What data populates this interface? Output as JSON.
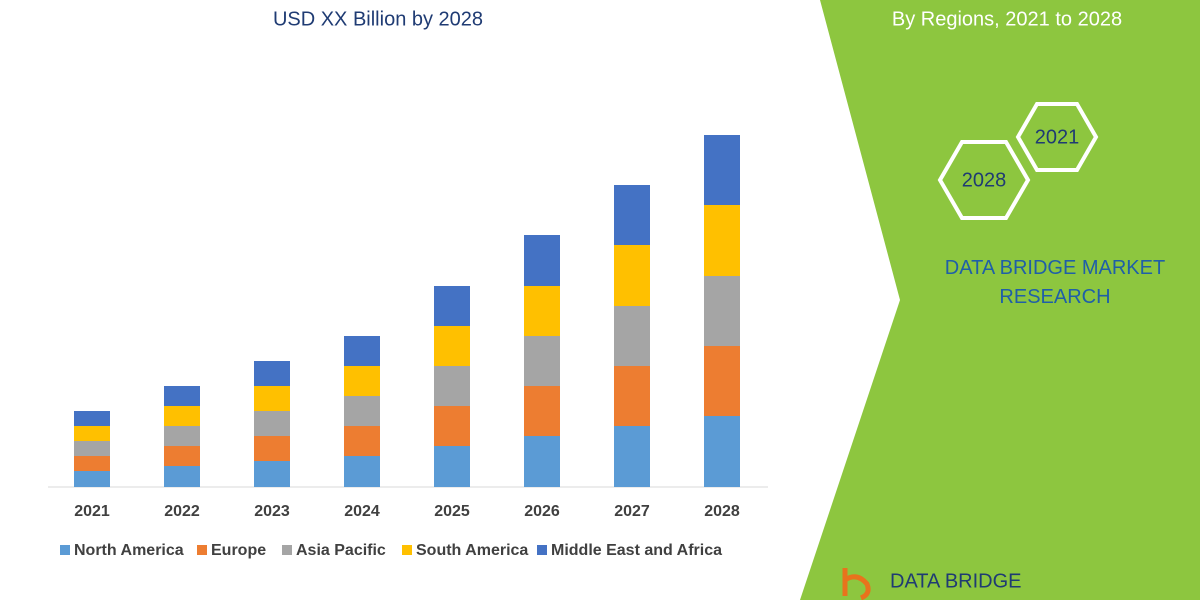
{
  "chart_data": {
    "type": "stacked-bar",
    "title": "USD XX Billion by 2028",
    "categories": [
      "2021",
      "2022",
      "2023",
      "2024",
      "2025",
      "2026",
      "2027",
      "2028"
    ],
    "series": [
      {
        "name": "North America",
        "color": "#5b9bd5",
        "values": [
          16,
          21,
          26,
          31,
          41,
          51,
          61,
          71
        ]
      },
      {
        "name": "Europe",
        "color": "#ed7d31",
        "values": [
          15,
          20,
          25,
          30,
          40,
          50,
          60,
          70
        ]
      },
      {
        "name": "Asia Pacific",
        "color": "#a5a5a5",
        "values": [
          15,
          20,
          25,
          30,
          40,
          50,
          60,
          70
        ]
      },
      {
        "name": "South America",
        "color": "#ffc000",
        "values": [
          15,
          20,
          25,
          30,
          40,
          50,
          61,
          71
        ]
      },
      {
        "name": "Middle East and Africa",
        "color": "#4472c4",
        "values": [
          15,
          20,
          25,
          30,
          40,
          51,
          60,
          70
        ]
      }
    ],
    "legend": "bottom"
  },
  "panel": {
    "subtitle": "By Regions, 2021 to 2028",
    "badges": [
      "2021",
      "2028"
    ],
    "brand": "DATA BRIDGE MARKET RESEARCH",
    "logo": "DATA BRIDGE"
  }
}
